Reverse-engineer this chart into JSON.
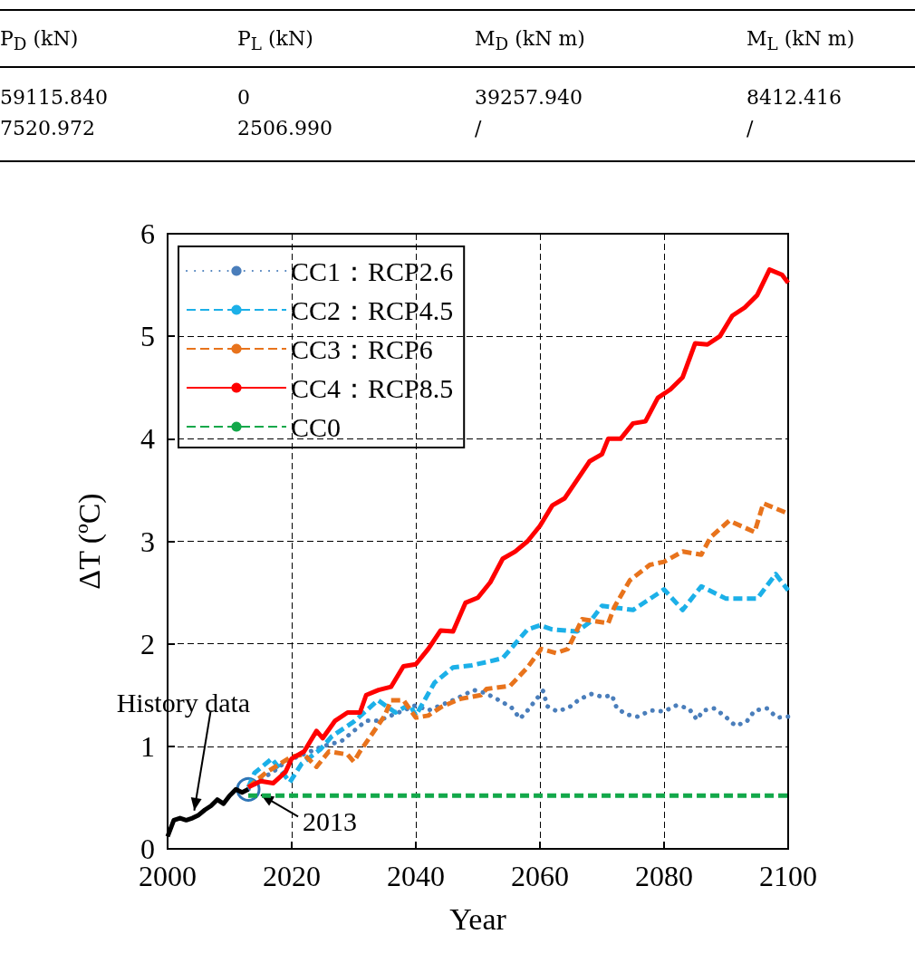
{
  "chart_data": [
    {
      "type": "other",
      "annotations": [
        "P$_{D}$ (kN)",
        "P$_{L}$ (kN)",
        "M$_{D}$ (kN m)",
        "M$_{L}$ (kN m)",
        "59115.840",
        "0",
        "39257.940",
        "8412.416",
        "7520.972",
        "2506.990",
        "/",
        "/"
      ]
    },
    {
      "type": "line",
      "xlabel": "Year",
      "ylabel": "ΔT (ºC)",
      "xlim": [
        2000,
        2100
      ],
      "xticks": [
        2000,
        2020,
        2040,
        2060,
        2080,
        2100
      ],
      "ylim": [
        0,
        6
      ],
      "yticks": [
        0,
        1,
        2,
        3,
        4,
        5,
        6
      ],
      "grid": true,
      "legend": "top left",
      "marker": "none",
      "annotations": [
        {
          "text": "History data",
          "x": 2004,
          "y": 0.32
        },
        {
          "text": "2013",
          "x": 2013,
          "y": 0.58
        }
      ],
      "series": [
        {
          "name": "CC1：RCP2.6",
          "color": "#4a7ebb",
          "line_style": "dotted",
          "x": [
            2013,
            2015,
            2017,
            2019,
            2021,
            2023,
            2025,
            2028,
            2030,
            2032,
            2034,
            2036,
            2038,
            2040,
            2042,
            2044,
            2046,
            2047.4,
            2049.3,
            2051.2,
            2053.4,
            2055.4,
            2056.8,
            2058,
            2059.3,
            2060.5,
            2061.2,
            2062.8,
            2064.7,
            2066.4,
            2068.3,
            2070.2,
            2071.6,
            2072.4,
            2074,
            2075.7,
            2077.9,
            2080,
            2082,
            2084,
            2085.3,
            2086.3,
            2088.1,
            2089.9,
            2091.5,
            2093.3,
            2094.6,
            2096.6,
            2098.2,
            2100
          ],
          "values": [
            0.58,
            0.68,
            0.75,
            0.85,
            0.9,
            0.95,
            1.0,
            1.05,
            1.15,
            1.25,
            1.25,
            1.3,
            1.35,
            1.4,
            1.35,
            1.4,
            1.45,
            1.49,
            1.55,
            1.52,
            1.45,
            1.38,
            1.27,
            1.35,
            1.45,
            1.54,
            1.39,
            1.34,
            1.38,
            1.46,
            1.51,
            1.48,
            1.5,
            1.37,
            1.31,
            1.29,
            1.35,
            1.34,
            1.4,
            1.37,
            1.26,
            1.35,
            1.37,
            1.29,
            1.2,
            1.24,
            1.35,
            1.37,
            1.28,
            1.29
          ]
        },
        {
          "name": "CC2：RCP4.5",
          "color": "#1cb0e8",
          "line_style": "dashed",
          "x": [
            2013,
            2014,
            2016.8,
            2019.7,
            2021.6,
            2024.6,
            2026.5,
            2030,
            2033.9,
            2036.7,
            2039,
            2040,
            2043,
            2046,
            2049,
            2052,
            2054,
            2058,
            2060,
            2062,
            2066,
            2068,
            2070,
            2075,
            2080,
            2083,
            2086,
            2090,
            2095,
            2098,
            2100
          ],
          "values": [
            0.6,
            0.74,
            0.88,
            0.65,
            0.83,
            0.97,
            1.1,
            1.24,
            1.45,
            1.33,
            1.41,
            1.3,
            1.62,
            1.77,
            1.79,
            1.83,
            1.86,
            2.14,
            2.18,
            2.14,
            2.12,
            2.21,
            2.37,
            2.33,
            2.53,
            2.33,
            2.56,
            2.44,
            2.44,
            2.68,
            2.52
          ]
        },
        {
          "name": "CC3：RCP6",
          "color": "#e8731c",
          "line_style": "dashed",
          "x": [
            2013,
            2016,
            2020,
            2022,
            2024,
            2026,
            2029,
            2030,
            2031,
            2035,
            2036,
            2038,
            2040,
            2042,
            2044,
            2047,
            2050.5,
            2051.4,
            2055.2,
            2058,
            2060.2,
            2062.6,
            2064.5,
            2066.8,
            2071,
            2072,
            2074.5,
            2077.7,
            2080,
            2083,
            2086,
            2087.5,
            2090.5,
            2094.6,
            2096,
            2100
          ],
          "values": [
            0.6,
            0.75,
            0.9,
            0.92,
            0.8,
            0.95,
            0.92,
            0.85,
            0.95,
            1.3,
            1.45,
            1.45,
            1.28,
            1.3,
            1.38,
            1.46,
            1.5,
            1.56,
            1.59,
            1.77,
            1.95,
            1.91,
            1.95,
            2.24,
            2.2,
            2.36,
            2.62,
            2.77,
            2.8,
            2.9,
            2.87,
            3.04,
            3.2,
            3.09,
            3.37,
            3.27
          ]
        },
        {
          "name": "CC4：RCP8.5",
          "color": "#ff0000",
          "line_style": "solid",
          "x": [
            2013,
            2015,
            2017,
            2019,
            2020,
            2022,
            2024,
            2025,
            2027,
            2029,
            2031,
            2032,
            2034,
            2036,
            2038,
            2040,
            2042,
            2044,
            2046,
            2048,
            2050,
            2052,
            2054,
            2056,
            2058,
            2060,
            2062,
            2064,
            2066,
            2068,
            2070,
            2071,
            2073,
            2075,
            2077,
            2079,
            2081,
            2083,
            2085,
            2087,
            2089,
            2091,
            2093,
            2095,
            2097,
            2099,
            2100
          ],
          "values": [
            0.6,
            0.66,
            0.64,
            0.75,
            0.88,
            0.95,
            1.15,
            1.08,
            1.25,
            1.33,
            1.33,
            1.5,
            1.55,
            1.58,
            1.78,
            1.8,
            1.95,
            2.13,
            2.12,
            2.4,
            2.45,
            2.6,
            2.83,
            2.9,
            3.0,
            3.15,
            3.35,
            3.42,
            3.6,
            3.78,
            3.85,
            4.0,
            4.0,
            4.15,
            4.17,
            4.4,
            4.48,
            4.6,
            4.93,
            4.92,
            5.0,
            5.2,
            5.28,
            5.4,
            5.65,
            5.6,
            5.52
          ]
        },
        {
          "name": "CC0",
          "color": "#13a84a",
          "line_style": "dashed",
          "x": [
            2013,
            2100
          ],
          "values": [
            0.52,
            0.52
          ]
        },
        {
          "color": "#000000",
          "line_style": "solid",
          "x": [
            2000,
            2001,
            2002,
            2003,
            2004,
            2005,
            2006,
            2007,
            2008,
            2009,
            2010,
            2011,
            2012,
            2013
          ],
          "values": [
            0.12,
            0.28,
            0.3,
            0.28,
            0.3,
            0.33,
            0.38,
            0.42,
            0.48,
            0.44,
            0.52,
            0.58,
            0.55,
            0.58
          ]
        }
      ]
    }
  ]
}
